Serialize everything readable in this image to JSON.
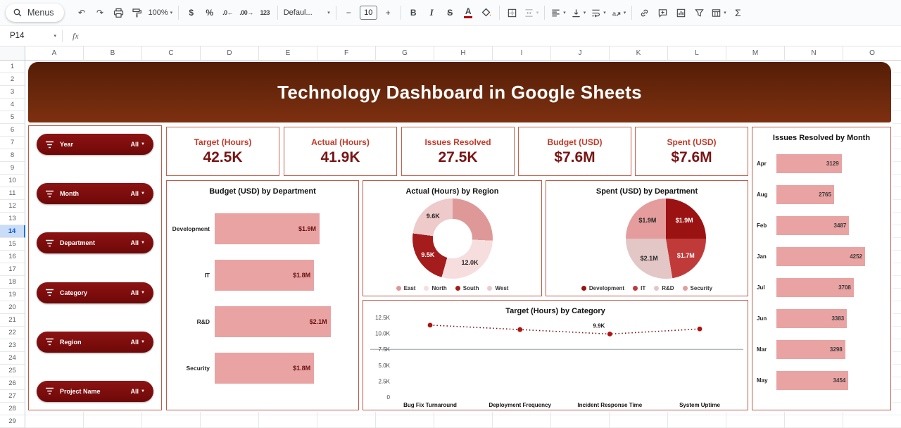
{
  "toolbar": {
    "menus_label": "Menus",
    "zoom_value": "100%",
    "currency_label": "$",
    "percent_label": "%",
    "decrease_decimal_label": ".0←",
    "increase_decimal_label": ".00→",
    "plain_number_label": "123",
    "font_family_value": "Defaul...",
    "minus_label": "−",
    "font_size_value": "10",
    "plus_label": "+",
    "bold_label": "B",
    "italic_label": "I",
    "strikethrough_label": "S",
    "text_color_label": "A",
    "sum_label": "Σ"
  },
  "formula_bar": {
    "name_box_value": "P14",
    "fx_label": "fx"
  },
  "grid": {
    "column_headers": [
      "A",
      "B",
      "C",
      "D",
      "E",
      "F",
      "G",
      "H",
      "I",
      "J",
      "K",
      "L",
      "M",
      "N",
      "O"
    ],
    "row_count": 29,
    "selected_row": 14
  },
  "banner": {
    "title": "Technology Dashboard in Google Sheets"
  },
  "slicers": [
    {
      "label": "Year",
      "value": "All"
    },
    {
      "label": "Month",
      "value": "All"
    },
    {
      "label": "Department",
      "value": "All"
    },
    {
      "label": "Category",
      "value": "All"
    },
    {
      "label": "Region",
      "value": "All"
    },
    {
      "label": "Project Name",
      "value": "All"
    }
  ],
  "kpis": [
    {
      "title": "Target (Hours)",
      "value": "42.5K"
    },
    {
      "title": "Actual (Hours)",
      "value": "41.9K"
    },
    {
      "title": "Issues Resolved",
      "value": "27.5K"
    },
    {
      "title": "Budget (USD)",
      "value": "$7.6M"
    },
    {
      "title": "Spent (USD)",
      "value": "$7.6M"
    }
  ],
  "colors": {
    "bar_pink": "#e9a3a3",
    "slicer_red": "#7d0d0d",
    "kpi_title_red": "#c23a28",
    "kpi_value_maroon": "#7b1414",
    "panel_border": "#bf5a4a",
    "line_point_red": "#b01111"
  },
  "chart_data": [
    {
      "id": "budget-by-department",
      "type": "bar",
      "orientation": "horizontal",
      "title": "Budget (USD) by Department",
      "categories": [
        "Development",
        "IT",
        "R&D",
        "Security"
      ],
      "values": [
        1.9,
        1.8,
        2.1,
        1.8
      ],
      "labels": [
        "$1.9M",
        "$1.8M",
        "$2.1M",
        "$1.8M"
      ],
      "scale_max": 2.5,
      "bar_color": "#e9a3a3"
    },
    {
      "id": "actual-by-region",
      "type": "pie",
      "subtype": "donut",
      "title": "Actual (Hours) by Region",
      "categories": [
        "East",
        "North",
        "South",
        "West"
      ],
      "values": [
        10.8,
        12.0,
        9.5,
        9.6
      ],
      "labels": [
        "",
        "12.0K",
        "9.5K",
        "9.6K"
      ],
      "colors": [
        "#df9898",
        "#f7dede",
        "#a41c1c",
        "#eecaca"
      ],
      "legend_position": "bottom"
    },
    {
      "id": "spent-by-department",
      "type": "pie",
      "title": "Spent (USD) by Department",
      "categories": [
        "Development",
        "IT",
        "R&D",
        "Security"
      ],
      "values": [
        1.9,
        1.7,
        2.1,
        1.9
      ],
      "labels": [
        "$1.9M",
        "$1.7M",
        "$2.1M",
        "$1.9M"
      ],
      "colors": [
        "#9b1212",
        "#c03a3a",
        "#e3c6c6",
        "#e49c9c"
      ],
      "legend_position": "bottom"
    },
    {
      "id": "target-by-category",
      "type": "line",
      "title": "Target (Hours) by Category",
      "categories": [
        "Bug Fix Turnaround",
        "Deployment Frequency",
        "Incident Response Time",
        "System Uptime"
      ],
      "values": [
        11.3,
        10.6,
        9.9,
        10.7
      ],
      "unit": "K",
      "ylim": [
        0,
        12.5
      ],
      "ytick_values": [
        12.5,
        10,
        7.5,
        5,
        2.5,
        0
      ],
      "ytick_labels": [
        "12.5K",
        "10.0K",
        "7.5K",
        "5.0K",
        "2.5K",
        "0"
      ],
      "gridline_at": 7.5,
      "annotation": {
        "index": 2,
        "text": "9.9K"
      },
      "line_style": "dotted"
    },
    {
      "id": "issues-by-month",
      "type": "bar",
      "orientation": "horizontal",
      "title": "Issues Resolved by Month",
      "categories": [
        "Apr",
        "Aug",
        "Feb",
        "Jan",
        "Jul",
        "Jun",
        "Mar",
        "May"
      ],
      "values": [
        3129,
        2765,
        3487,
        4252,
        3708,
        3383,
        3298,
        3454
      ],
      "labels": [
        "3129",
        "2765",
        "3487",
        "4252",
        "3708",
        "3383",
        "3298",
        "3454"
      ],
      "bar_color": "#e9a3a3"
    }
  ]
}
